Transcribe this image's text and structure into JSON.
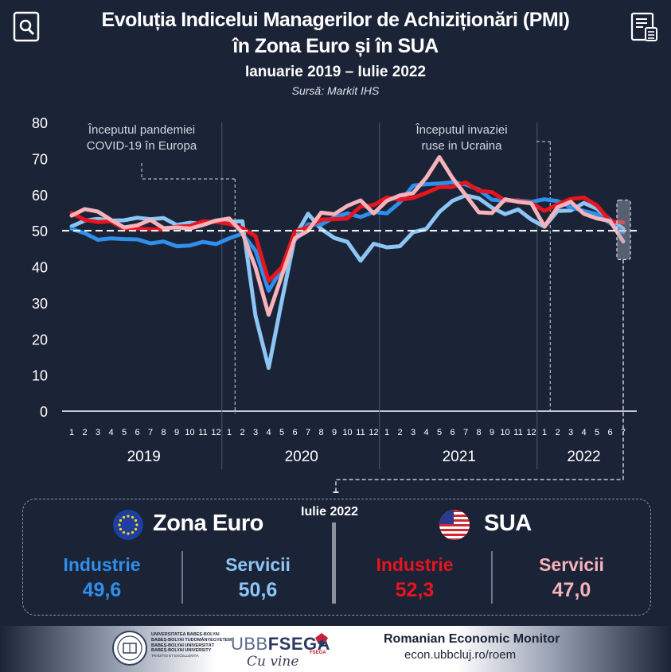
{
  "header": {
    "title_line1": "Evoluția Indicelui Managerilor de Achiziționări (PMI)",
    "title_line2": "în Zona Euro și în SUA",
    "period": "Ianuarie  2019 – Iulie 2022",
    "source": "Sursă: Markit IHS",
    "left_icon": "search-document-icon",
    "right_icon": "report-calculator-icon"
  },
  "chart_data": {
    "type": "line",
    "title": "Evoluția Indicelui Managerilor de Achiziționări (PMI) în Zona Euro și în SUA",
    "ylim": [
      0,
      80
    ],
    "yticks": [
      0,
      10,
      20,
      30,
      40,
      50,
      60,
      70,
      80
    ],
    "reference_line": 50,
    "grid": false,
    "month_ticks": [
      "1",
      "2",
      "3",
      "4",
      "5",
      "6",
      "7",
      "8",
      "9",
      "10",
      "11",
      "12",
      "1",
      "2",
      "3",
      "4",
      "5",
      "6",
      "7",
      "8",
      "9",
      "10",
      "11",
      "12",
      "1",
      "2",
      "3",
      "4",
      "5",
      "6",
      "7",
      "8",
      "9",
      "10",
      "11",
      "12",
      "1",
      "2",
      "3",
      "4",
      "5",
      "6",
      "7"
    ],
    "years": [
      "2019",
      "2020",
      "2021",
      "2022"
    ],
    "annotations": [
      {
        "text_line1": "Începutul pandemiei",
        "text_line2": "COVID-19 în Europa",
        "month_index": 13
      },
      {
        "text_line1": "Începutul invaziei",
        "text_line2": "ruse in Ucraina",
        "month_index": 37
      }
    ],
    "series": [
      {
        "key": "ez_ind",
        "color": "#2f8fea",
        "values": [
          50.5,
          49.3,
          47.5,
          47.9,
          47.7,
          47.6,
          46.5,
          47.0,
          45.7,
          45.9,
          46.9,
          46.3,
          47.9,
          49.2,
          44.5,
          33.4,
          39.4,
          47.4,
          51.8,
          51.7,
          53.7,
          54.8,
          53.8,
          55.2,
          54.8,
          57.9,
          62.5,
          62.9,
          63.1,
          63.4,
          62.8,
          61.4,
          58.6,
          58.3,
          58.4,
          58.0,
          58.7,
          58.2,
          56.5,
          55.5,
          54.6,
          52.1,
          49.6
        ]
      },
      {
        "key": "ez_serv",
        "color": "#8cc6f5",
        "values": [
          51.2,
          52.8,
          53.3,
          52.8,
          52.9,
          53.6,
          53.2,
          53.5,
          51.6,
          52.2,
          51.9,
          52.8,
          52.5,
          52.6,
          26.4,
          12.0,
          30.5,
          48.3,
          54.7,
          50.5,
          48.0,
          46.9,
          41.7,
          46.4,
          45.4,
          45.7,
          49.6,
          50.5,
          55.2,
          58.3,
          59.8,
          59.0,
          56.4,
          54.6,
          55.9,
          53.1,
          51.1,
          55.5,
          55.6,
          57.7,
          56.1,
          53.0,
          50.6
        ]
      },
      {
        "key": "us_ind",
        "color": "#e8141e",
        "values": [
          54.9,
          53.0,
          52.4,
          52.6,
          50.5,
          50.6,
          50.4,
          50.3,
          51.1,
          51.3,
          52.6,
          52.4,
          51.9,
          50.7,
          48.5,
          36.1,
          39.8,
          49.8,
          50.9,
          53.1,
          53.2,
          53.4,
          56.7,
          57.1,
          59.2,
          58.6,
          59.1,
          60.5,
          62.1,
          62.1,
          63.4,
          61.1,
          60.7,
          58.4,
          58.3,
          57.7,
          55.5,
          57.3,
          58.8,
          59.2,
          57.0,
          52.7,
          52.3
        ]
      },
      {
        "key": "us_serv",
        "color": "#f7b3ba",
        "values": [
          54.2,
          56.0,
          55.3,
          53.0,
          50.9,
          51.5,
          53.0,
          50.7,
          50.9,
          50.6,
          51.6,
          52.8,
          53.4,
          49.4,
          39.8,
          26.7,
          37.5,
          47.9,
          50.0,
          55.0,
          54.6,
          56.9,
          58.4,
          54.8,
          58.3,
          59.8,
          60.4,
          64.7,
          70.4,
          64.6,
          59.9,
          55.1,
          54.9,
          58.7,
          58.0,
          57.6,
          51.2,
          56.5,
          58.0,
          54.7,
          53.4,
          52.7,
          47.0
        ]
      }
    ],
    "month_labels_note": ""
  },
  "summary": {
    "month_label": "Iulie 2022",
    "regions": [
      {
        "name": "Zona Euro",
        "flag_icon": "eu-flag-icon",
        "items": [
          {
            "label": "Industrie",
            "value": "49,6",
            "color": "#2f8fea"
          },
          {
            "label": "Servicii",
            "value": "50,6",
            "color": "#8cc6f5"
          }
        ]
      },
      {
        "name": "SUA",
        "flag_icon": "us-flag-icon",
        "items": [
          {
            "label": "Industrie",
            "value": "52,3",
            "color": "#e8141e"
          },
          {
            "label": "Servicii",
            "value": "47,0",
            "color": "#f7b3ba"
          }
        ]
      }
    ]
  },
  "footer": {
    "university_lines": [
      "UNIVERSITATEA BABEȘ-BOLYAI",
      "BABEȘ-BOLYAI TUDOMÁNYEGYETEM",
      "BABEȘ-BOLYAI UNIVERSITÄT",
      "BABEȘ-BOLYAI UNIVERSITY",
      "TRADITIO ET EXCELLENTIA"
    ],
    "ubb_logo_text": "UBB",
    "fsega_logo_text": "FSEGA",
    "fsega_small": "FSEGA",
    "signature": "Cu vine",
    "monitor_title": "Romanian Economic Monitor",
    "monitor_url": "econ.ubbcluj.ro/roem"
  }
}
